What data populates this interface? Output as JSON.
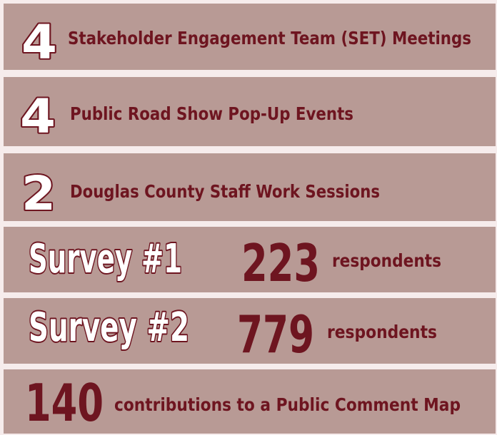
{
  "rows": [
    {
      "number": "4",
      "label": "Stakeholder Engagement Team (SET) Meetings"
    },
    {
      "number": "4",
      "label": "Public Road Show Pop-Up Events"
    },
    {
      "number": "2",
      "label": "Douglas County Staff Work Sessions"
    },
    {
      "title": "Survey #1",
      "number": "223",
      "label": "respondents"
    },
    {
      "title": "Survey #2",
      "number": "779",
      "label": "respondents"
    },
    {
      "number": "140",
      "label": "contributions to a Public Comment Map"
    }
  ]
}
